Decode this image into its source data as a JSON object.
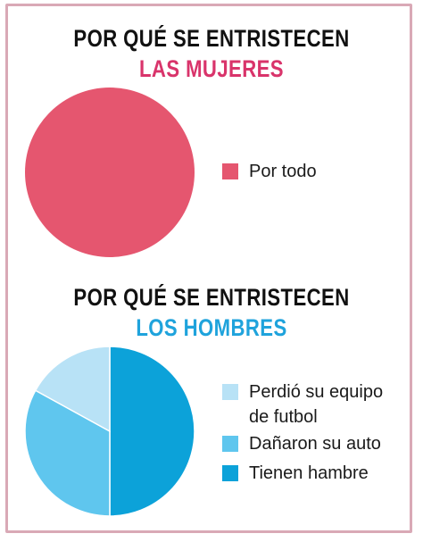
{
  "chart_data": [
    {
      "type": "pie",
      "title": "POR QUÉ SE ENTRISTECEN",
      "subtitle": "LAS MUJERES",
      "subtitle_color": "#d9346b",
      "slices": [
        {
          "label": "Por todo",
          "value": 100,
          "color": "#e5566f"
        }
      ]
    },
    {
      "type": "pie",
      "title": "POR QUÉ SE ENTRISTECEN",
      "subtitle": "LOS HOMBRES",
      "subtitle_color": "#1fa3dc",
      "slices": [
        {
          "label": "Perdió su equipo de futbol",
          "value": 17,
          "color": "#b8e2f6"
        },
        {
          "label": "Dañaron su auto",
          "value": 33,
          "color": "#5fc6ee"
        },
        {
          "label": "Tienen hambre",
          "value": 50,
          "color": "#0ca2d9"
        }
      ]
    }
  ]
}
